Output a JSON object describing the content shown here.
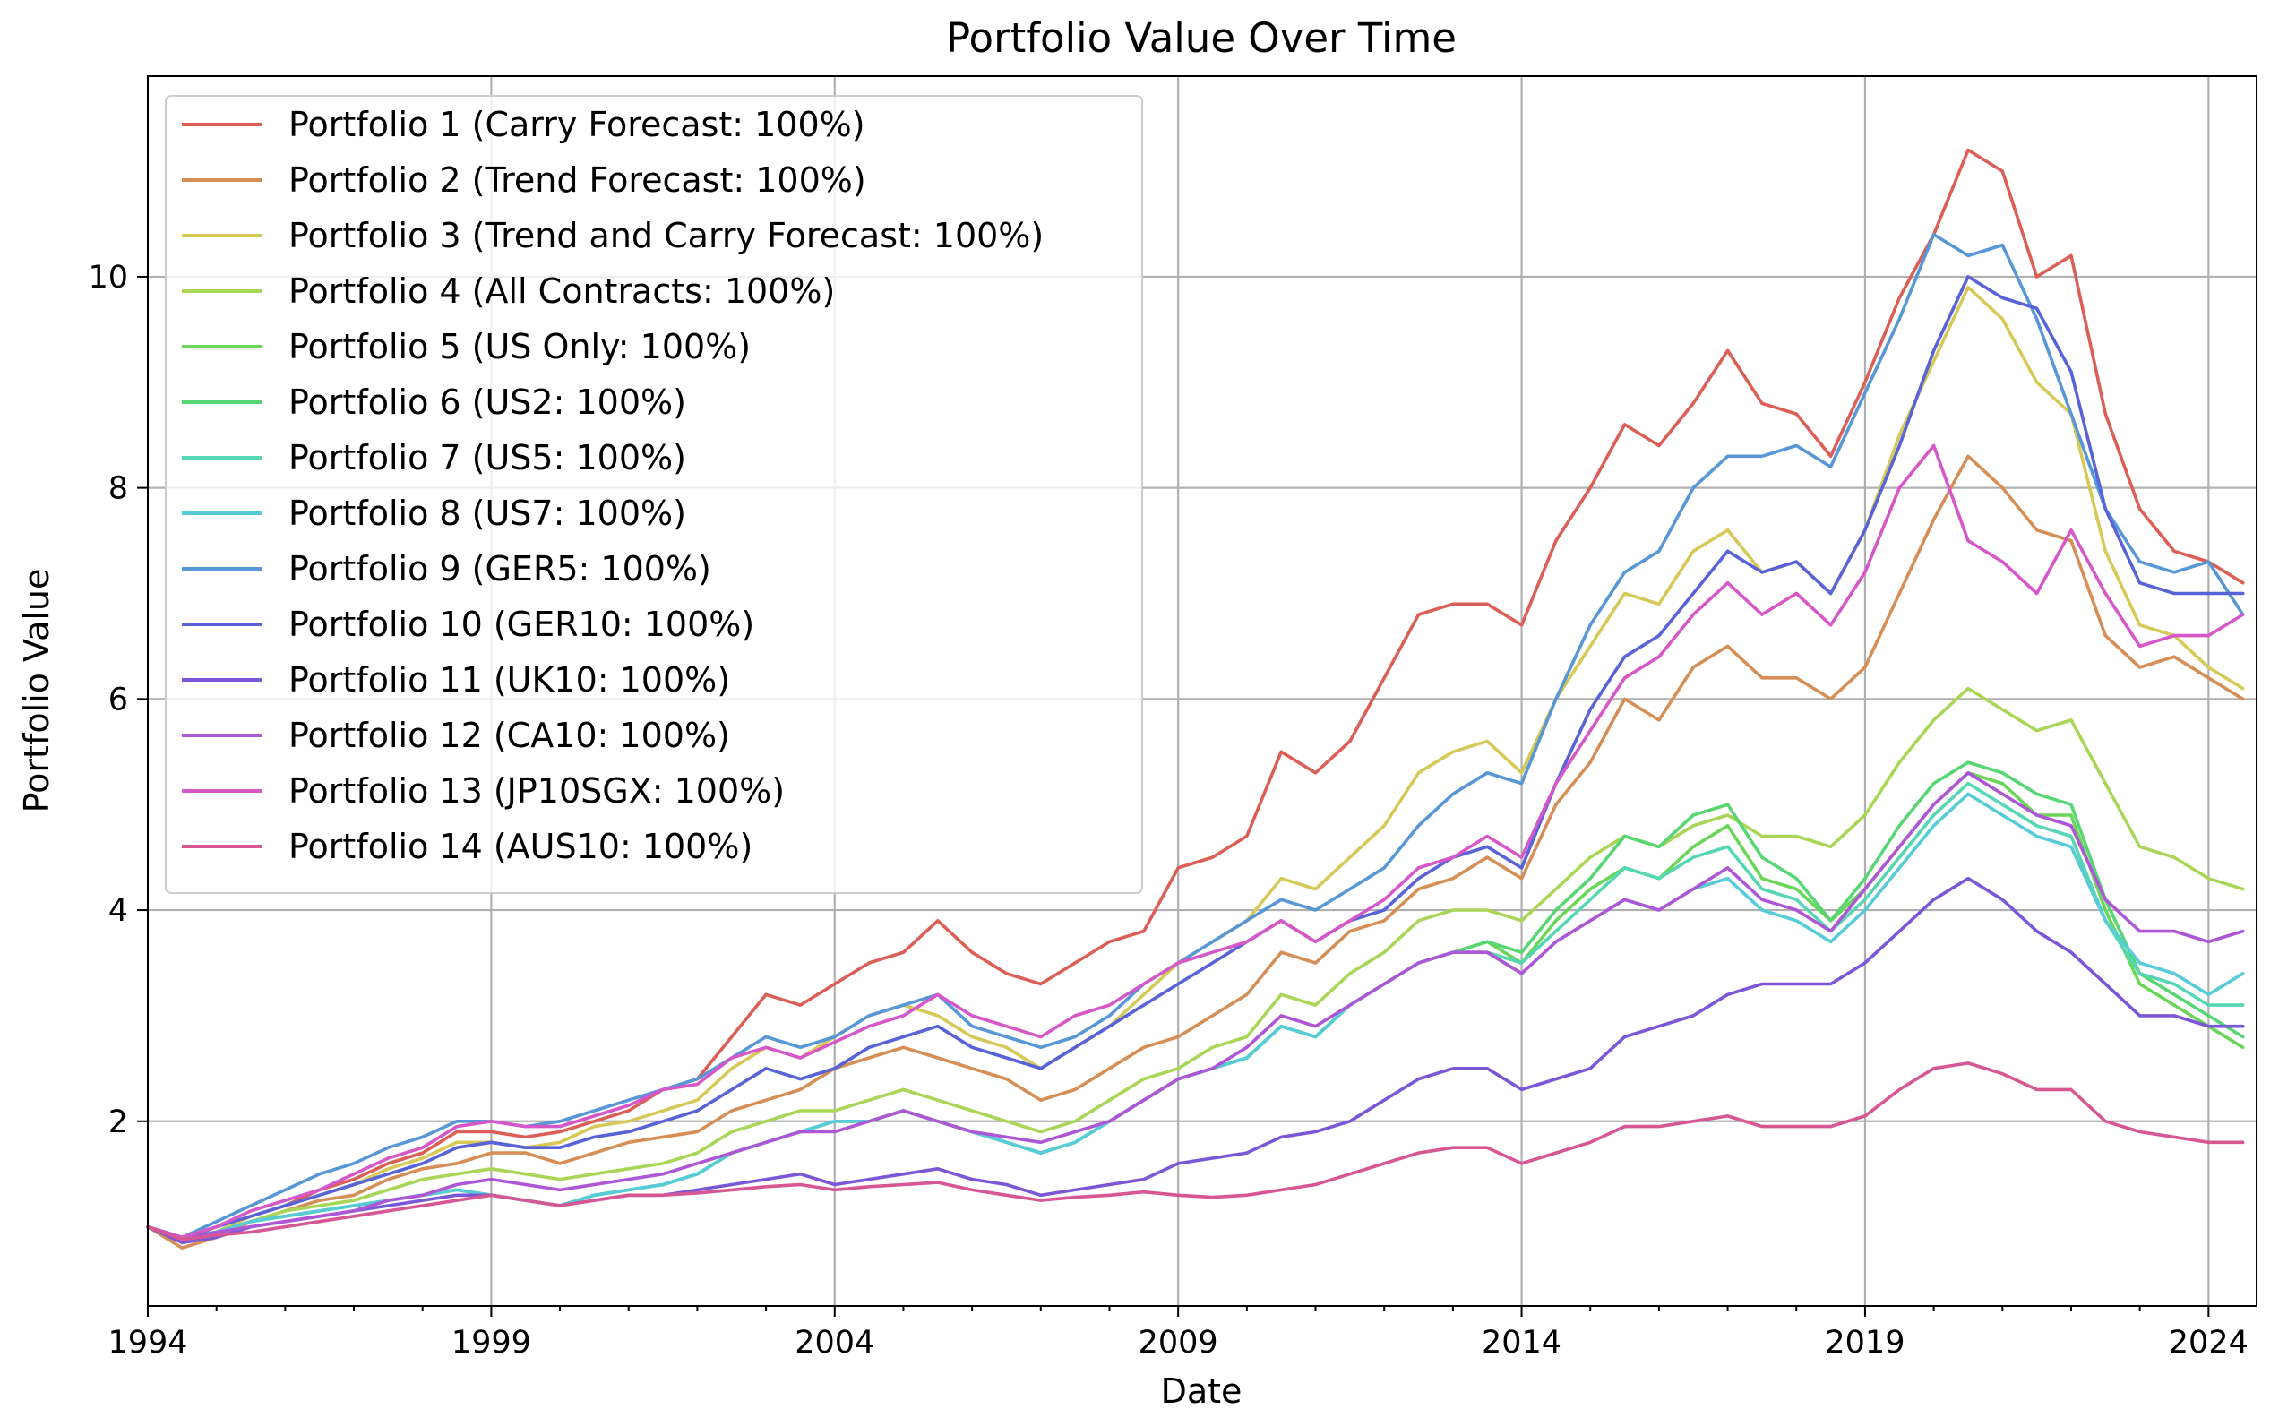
{
  "chart_data": {
    "type": "line",
    "title": "Portfolio Value Over Time",
    "xlabel": "Date",
    "ylabel": "Portfolio Value",
    "xlim": [
      1994.0,
      2024.7
    ],
    "ylim": [
      0.25,
      11.9
    ],
    "x_ticks": [
      1994,
      1999,
      2004,
      2009,
      2014,
      2019,
      2024
    ],
    "y_ticks": [
      2,
      4,
      6,
      8,
      10
    ],
    "grid": true,
    "legend_position": "top-left",
    "x": [
      1994,
      1994.5,
      1995,
      1995.5,
      1996,
      1996.5,
      1997,
      1997.5,
      1998,
      1998.5,
      1999,
      1999.5,
      2000,
      2000.5,
      2001,
      2001.5,
      2002,
      2002.5,
      2003,
      2003.5,
      2004,
      2004.5,
      2005,
      2005.5,
      2006,
      2006.5,
      2007,
      2007.5,
      2008,
      2008.5,
      2009,
      2009.5,
      2010,
      2010.5,
      2011,
      2011.5,
      2012,
      2012.5,
      2013,
      2013.5,
      2014,
      2014.5,
      2015,
      2015.5,
      2016,
      2016.5,
      2017,
      2017.5,
      2018,
      2018.5,
      2019,
      2019.5,
      2020,
      2020.5,
      2021,
      2021.5,
      2022,
      2022.5,
      2023,
      2023.5,
      2024,
      2024.5
    ],
    "series": [
      {
        "name": "Portfolio 1 (Carry Forecast: 100%)",
        "color": "#db5f57",
        "values": [
          1.0,
          0.88,
          0.95,
          1.1,
          1.2,
          1.35,
          1.45,
          1.6,
          1.7,
          1.9,
          1.9,
          1.85,
          1.9,
          2.0,
          2.1,
          2.3,
          2.4,
          2.8,
          3.2,
          3.1,
          3.3,
          3.5,
          3.6,
          3.9,
          3.6,
          3.4,
          3.3,
          3.5,
          3.7,
          3.8,
          4.4,
          4.5,
          4.7,
          5.5,
          5.3,
          5.6,
          6.2,
          6.8,
          6.9,
          6.9,
          6.7,
          7.5,
          8.0,
          8.6,
          8.4,
          8.8,
          9.3,
          8.8,
          8.7,
          8.3,
          9.0,
          9.8,
          10.4,
          11.2,
          11.0,
          10.0,
          10.2,
          8.7,
          7.8,
          7.4,
          7.3,
          7.1
        ]
      },
      {
        "name": "Portfolio 2 (Trend Forecast: 100%)",
        "color": "#d68e57",
        "values": [
          1.0,
          0.8,
          0.9,
          1.05,
          1.15,
          1.25,
          1.3,
          1.45,
          1.55,
          1.6,
          1.7,
          1.7,
          1.6,
          1.7,
          1.8,
          1.85,
          1.9,
          2.1,
          2.2,
          2.3,
          2.5,
          2.6,
          2.7,
          2.6,
          2.5,
          2.4,
          2.2,
          2.3,
          2.5,
          2.7,
          2.8,
          3.0,
          3.2,
          3.6,
          3.5,
          3.8,
          3.9,
          4.2,
          4.3,
          4.5,
          4.3,
          5.0,
          5.4,
          6.0,
          5.8,
          6.3,
          6.5,
          6.2,
          6.2,
          6.0,
          6.3,
          7.0,
          7.7,
          8.3,
          8.0,
          7.6,
          7.5,
          6.6,
          6.3,
          6.4,
          6.2,
          6.0
        ]
      },
      {
        "name": "Portfolio 3 (Trend and Carry Forecast: 100%)",
        "color": "#d6c957",
        "values": [
          1.0,
          0.85,
          0.95,
          1.1,
          1.2,
          1.3,
          1.4,
          1.55,
          1.65,
          1.8,
          1.8,
          1.75,
          1.8,
          1.95,
          2.0,
          2.1,
          2.2,
          2.5,
          2.7,
          2.6,
          2.8,
          3.0,
          3.1,
          3.0,
          2.8,
          2.7,
          2.5,
          2.7,
          2.9,
          3.2,
          3.5,
          3.7,
          3.9,
          4.3,
          4.2,
          4.5,
          4.8,
          5.3,
          5.5,
          5.6,
          5.3,
          6.0,
          6.5,
          7.0,
          6.9,
          7.4,
          7.6,
          7.2,
          7.3,
          7.0,
          7.6,
          8.5,
          9.2,
          9.9,
          9.6,
          9.0,
          8.7,
          7.4,
          6.7,
          6.6,
          6.3,
          6.1
        ]
      },
      {
        "name": "Portfolio 4 (All Contracts: 100%)",
        "color": "#a9d657",
        "values": [
          1.0,
          0.9,
          0.95,
          1.05,
          1.15,
          1.2,
          1.25,
          1.35,
          1.45,
          1.5,
          1.55,
          1.5,
          1.45,
          1.5,
          1.55,
          1.6,
          1.7,
          1.9,
          2.0,
          2.1,
          2.1,
          2.2,
          2.3,
          2.2,
          2.1,
          2.0,
          1.9,
          2.0,
          2.2,
          2.4,
          2.5,
          2.7,
          2.8,
          3.2,
          3.1,
          3.4,
          3.6,
          3.9,
          4.0,
          4.0,
          3.9,
          4.2,
          4.5,
          4.7,
          4.6,
          4.8,
          4.9,
          4.7,
          4.7,
          4.6,
          4.9,
          5.4,
          5.8,
          6.1,
          5.9,
          5.7,
          5.8,
          5.2,
          4.6,
          4.5,
          4.3,
          4.2
        ]
      },
      {
        "name": "Portfolio 5 (US Only: 100%)",
        "color": "#6ad657",
        "values": [
          1.0,
          0.9,
          0.95,
          1.05,
          1.1,
          1.15,
          1.2,
          1.25,
          1.3,
          1.35,
          1.3,
          1.25,
          1.2,
          1.3,
          1.35,
          1.4,
          1.5,
          1.7,
          1.8,
          1.9,
          2.0,
          2.0,
          2.1,
          2.0,
          1.9,
          1.8,
          1.7,
          1.8,
          2.0,
          2.2,
          2.4,
          2.5,
          2.6,
          2.9,
          2.8,
          3.1,
          3.3,
          3.5,
          3.6,
          3.7,
          3.5,
          3.9,
          4.2,
          4.4,
          4.3,
          4.6,
          4.8,
          4.3,
          4.2,
          3.9,
          4.2,
          4.6,
          5.0,
          5.3,
          5.2,
          4.9,
          4.9,
          4.0,
          3.3,
          3.1,
          2.9,
          2.7
        ]
      },
      {
        "name": "Portfolio 6 (US2: 100%)",
        "color": "#57d673",
        "values": [
          1.0,
          0.9,
          0.95,
          1.05,
          1.1,
          1.15,
          1.2,
          1.25,
          1.3,
          1.35,
          1.3,
          1.25,
          1.2,
          1.3,
          1.35,
          1.4,
          1.5,
          1.7,
          1.8,
          1.9,
          2.0,
          2.0,
          2.1,
          2.0,
          1.9,
          1.8,
          1.7,
          1.8,
          2.0,
          2.2,
          2.4,
          2.5,
          2.6,
          2.9,
          2.8,
          3.1,
          3.3,
          3.5,
          3.6,
          3.7,
          3.6,
          4.0,
          4.3,
          4.7,
          4.6,
          4.9,
          5.0,
          4.5,
          4.3,
          3.9,
          4.3,
          4.8,
          5.2,
          5.4,
          5.3,
          5.1,
          5.0,
          4.1,
          3.4,
          3.2,
          3.0,
          2.8
        ]
      },
      {
        "name": "Portfolio 7 (US5: 100%)",
        "color": "#57d6b4",
        "values": [
          1.0,
          0.9,
          0.95,
          1.05,
          1.1,
          1.15,
          1.2,
          1.25,
          1.3,
          1.35,
          1.3,
          1.25,
          1.2,
          1.3,
          1.35,
          1.4,
          1.5,
          1.7,
          1.8,
          1.9,
          2.0,
          2.0,
          2.1,
          2.0,
          1.9,
          1.8,
          1.7,
          1.8,
          2.0,
          2.2,
          2.4,
          2.5,
          2.6,
          2.9,
          2.8,
          3.1,
          3.3,
          3.5,
          3.6,
          3.6,
          3.5,
          3.8,
          4.1,
          4.4,
          4.3,
          4.5,
          4.6,
          4.2,
          4.1,
          3.8,
          4.1,
          4.5,
          4.9,
          5.2,
          5.0,
          4.8,
          4.7,
          3.9,
          3.4,
          3.3,
          3.1,
          3.1
        ]
      },
      {
        "name": "Portfolio 8 (US7: 100%)",
        "color": "#57cbd6",
        "values": [
          1.0,
          0.9,
          0.95,
          1.05,
          1.1,
          1.15,
          1.2,
          1.25,
          1.3,
          1.35,
          1.3,
          1.25,
          1.2,
          1.3,
          1.35,
          1.4,
          1.5,
          1.7,
          1.8,
          1.9,
          2.0,
          2.0,
          2.1,
          2.0,
          1.9,
          1.8,
          1.7,
          1.8,
          2.0,
          2.2,
          2.4,
          2.5,
          2.6,
          2.9,
          2.8,
          3.1,
          3.3,
          3.5,
          3.6,
          3.6,
          3.4,
          3.7,
          3.9,
          4.1,
          4.0,
          4.2,
          4.3,
          4.0,
          3.9,
          3.7,
          4.0,
          4.4,
          4.8,
          5.1,
          4.9,
          4.7,
          4.6,
          3.9,
          3.5,
          3.4,
          3.2,
          3.4
        ]
      },
      {
        "name": "Portfolio 9 (GER5: 100%)",
        "color": "#5797d6",
        "values": [
          1.0,
          0.9,
          1.05,
          1.2,
          1.35,
          1.5,
          1.6,
          1.75,
          1.85,
          2.0,
          2.0,
          1.95,
          2.0,
          2.1,
          2.2,
          2.3,
          2.4,
          2.6,
          2.8,
          2.7,
          2.8,
          3.0,
          3.1,
          3.2,
          2.9,
          2.8,
          2.7,
          2.8,
          3.0,
          3.3,
          3.5,
          3.7,
          3.9,
          4.1,
          4.0,
          4.2,
          4.4,
          4.8,
          5.1,
          5.3,
          5.2,
          6.0,
          6.7,
          7.2,
          7.4,
          8.0,
          8.3,
          8.3,
          8.4,
          8.2,
          8.9,
          9.6,
          10.4,
          10.2,
          10.3,
          9.6,
          8.7,
          7.8,
          7.3,
          7.2,
          7.3,
          6.8
        ]
      },
      {
        "name": "Portfolio 10 (GER10: 100%)",
        "color": "#5763d6",
        "values": [
          1.0,
          0.88,
          1.0,
          1.1,
          1.2,
          1.3,
          1.4,
          1.5,
          1.6,
          1.75,
          1.8,
          1.75,
          1.75,
          1.85,
          1.9,
          2.0,
          2.1,
          2.3,
          2.5,
          2.4,
          2.5,
          2.7,
          2.8,
          2.9,
          2.7,
          2.6,
          2.5,
          2.7,
          2.9,
          3.1,
          3.3,
          3.5,
          3.7,
          3.9,
          3.7,
          3.9,
          4.0,
          4.3,
          4.5,
          4.6,
          4.4,
          5.2,
          5.9,
          6.4,
          6.6,
          7.0,
          7.4,
          7.2,
          7.3,
          7.0,
          7.6,
          8.4,
          9.3,
          10.0,
          9.8,
          9.7,
          9.1,
          7.8,
          7.1,
          7.0,
          7.0,
          7.0
        ]
      },
      {
        "name": "Portfolio 11 (UK10: 100%)",
        "color": "#7a57d6",
        "values": [
          1.0,
          0.85,
          0.9,
          1.0,
          1.05,
          1.1,
          1.15,
          1.2,
          1.25,
          1.3,
          1.3,
          1.25,
          1.2,
          1.25,
          1.3,
          1.3,
          1.35,
          1.4,
          1.45,
          1.5,
          1.4,
          1.45,
          1.5,
          1.55,
          1.45,
          1.4,
          1.3,
          1.35,
          1.4,
          1.45,
          1.6,
          1.65,
          1.7,
          1.85,
          1.9,
          2.0,
          2.2,
          2.4,
          2.5,
          2.5,
          2.3,
          2.4,
          2.5,
          2.8,
          2.9,
          3.0,
          3.2,
          3.3,
          3.3,
          3.3,
          3.5,
          3.8,
          4.1,
          4.3,
          4.1,
          3.8,
          3.6,
          3.3,
          3.0,
          3.0,
          2.9,
          2.9
        ]
      },
      {
        "name": "Portfolio 12 (CA10: 100%)",
        "color": "#ae57d6",
        "values": [
          1.0,
          0.88,
          0.95,
          1.0,
          1.05,
          1.1,
          1.15,
          1.25,
          1.3,
          1.4,
          1.45,
          1.4,
          1.35,
          1.4,
          1.45,
          1.5,
          1.6,
          1.7,
          1.8,
          1.9,
          1.9,
          2.0,
          2.1,
          2.0,
          1.9,
          1.85,
          1.8,
          1.9,
          2.0,
          2.2,
          2.4,
          2.5,
          2.7,
          3.0,
          2.9,
          3.1,
          3.3,
          3.5,
          3.6,
          3.6,
          3.4,
          3.7,
          3.9,
          4.1,
          4.0,
          4.2,
          4.4,
          4.1,
          4.0,
          3.8,
          4.2,
          4.6,
          5.0,
          5.3,
          5.1,
          4.9,
          4.8,
          4.1,
          3.8,
          3.8,
          3.7,
          3.8
        ]
      },
      {
        "name": "Portfolio 13 (JP10SGX: 100%)",
        "color": "#d657c7",
        "values": [
          1.0,
          0.9,
          1.0,
          1.15,
          1.25,
          1.35,
          1.5,
          1.65,
          1.75,
          1.95,
          2.0,
          1.95,
          1.95,
          2.05,
          2.15,
          2.3,
          2.35,
          2.6,
          2.7,
          2.6,
          2.75,
          2.9,
          3.0,
          3.2,
          3.0,
          2.9,
          2.8,
          3.0,
          3.1,
          3.3,
          3.5,
          3.6,
          3.7,
          3.9,
          3.7,
          3.9,
          4.1,
          4.4,
          4.5,
          4.7,
          4.5,
          5.2,
          5.7,
          6.2,
          6.4,
          6.8,
          7.1,
          6.8,
          7.0,
          6.7,
          7.2,
          8.0,
          8.4,
          7.5,
          7.3,
          7.0,
          7.6,
          7.0,
          6.5,
          6.6,
          6.6,
          6.8
        ]
      },
      {
        "name": "Portfolio 14 (AUS10: 100%)",
        "color": "#d65793",
        "values": [
          1.0,
          0.88,
          0.92,
          0.95,
          1.0,
          1.05,
          1.1,
          1.15,
          1.2,
          1.25,
          1.3,
          1.25,
          1.2,
          1.25,
          1.3,
          1.3,
          1.32,
          1.35,
          1.38,
          1.4,
          1.35,
          1.38,
          1.4,
          1.42,
          1.35,
          1.3,
          1.25,
          1.28,
          1.3,
          1.33,
          1.3,
          1.28,
          1.3,
          1.35,
          1.4,
          1.5,
          1.6,
          1.7,
          1.75,
          1.75,
          1.6,
          1.7,
          1.8,
          1.95,
          1.95,
          2.0,
          2.05,
          1.95,
          1.95,
          1.95,
          2.05,
          2.3,
          2.5,
          2.55,
          2.45,
          2.3,
          2.3,
          2.0,
          1.9,
          1.85,
          1.8,
          1.8
        ]
      }
    ]
  }
}
